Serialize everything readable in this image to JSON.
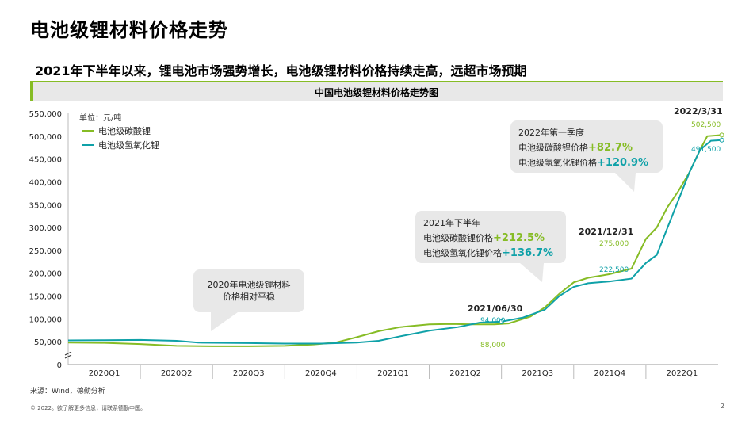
{
  "page": {
    "title": "电池级锂材料价格走势",
    "subtitle": "2021年下半年以来，锂电池市场强势增长，电池级锂材料价格持续走高，远超市场预期",
    "chart_heading": "中国电池级锂材料价格走势图",
    "source": "来源：Wind，德勤分析",
    "footer": "© 2022。欲了解更多信息，请联系德勤中国。",
    "page_number": "2"
  },
  "colors": {
    "green": "#86bc25",
    "teal": "#0fa1a8",
    "callout_bg": "#e8e8e8"
  },
  "callouts": {
    "c2020": {
      "text_line1": "2020年电池级锂材料",
      "text_line2": "价格相对平稳"
    },
    "c2021h2": {
      "line1": "2021年下半年",
      "carb_label": "电池级碳酸锂价格",
      "carb_pct": "+212.5%",
      "hydro_label": "电池级氢氧化锂价格",
      "hydro_pct": "+136.7%"
    },
    "c2022q1": {
      "line1": "2022年第一季度",
      "carb_label": "电池级碳酸锂价格",
      "carb_pct": "+82.7%",
      "hydro_label": "电池级氢氧化锂价格",
      "hydro_pct": "+120.9%"
    }
  },
  "annotations": {
    "d1": {
      "date": "2021/06/30",
      "teal_val": "94,000",
      "green_val": "88,000"
    },
    "d2": {
      "date": "2021/12/31",
      "green_val": "275,000",
      "teal_val": "222,500"
    },
    "d3": {
      "date": "2022/3/31",
      "green_val": "502,500",
      "teal_val": "491,500"
    }
  },
  "chart_data": {
    "type": "line",
    "unit_label": "单位：元/吨",
    "x_labels": [
      "2020Q1",
      "2020Q2",
      "2020Q3",
      "2020Q4",
      "2021Q1",
      "2021Q2",
      "2021Q3",
      "2021Q4",
      "2022Q1"
    ],
    "y_ticks": [
      "0",
      "50,000",
      "100,000",
      "150,000",
      "200,000",
      "250,000",
      "300,000",
      "350,000",
      "400,000",
      "450,000",
      "500,000",
      "550,000"
    ],
    "ylim": [
      0,
      550000
    ],
    "series": [
      {
        "name": "电池级碳酸锂",
        "color": "#86bc25",
        "points": [
          [
            0.0,
            48000
          ],
          [
            0.5,
            47500
          ],
          [
            1.0,
            45000
          ],
          [
            1.5,
            41000
          ],
          [
            2.0,
            40000
          ],
          [
            2.5,
            40000
          ],
          [
            3.0,
            41000
          ],
          [
            3.4,
            44000
          ],
          [
            3.7,
            48000
          ],
          [
            4.0,
            60000
          ],
          [
            4.3,
            73000
          ],
          [
            4.6,
            82000
          ],
          [
            5.0,
            88000
          ],
          [
            5.3,
            89000
          ],
          [
            5.6,
            88000
          ],
          [
            5.9,
            88000
          ],
          [
            6.1,
            90000
          ],
          [
            6.4,
            105000
          ],
          [
            6.6,
            125000
          ],
          [
            6.8,
            155000
          ],
          [
            7.0,
            180000
          ],
          [
            7.2,
            190000
          ],
          [
            7.5,
            198000
          ],
          [
            7.8,
            210000
          ],
          [
            8.0,
            275000
          ],
          [
            8.15,
            300000
          ],
          [
            8.3,
            345000
          ],
          [
            8.45,
            380000
          ],
          [
            8.6,
            420000
          ],
          [
            8.75,
            470000
          ],
          [
            8.85,
            500000
          ],
          [
            9.05,
            502500
          ]
        ]
      },
      {
        "name": "电池级氢氧化锂",
        "color": "#0fa1a8",
        "points": [
          [
            0.0,
            53000
          ],
          [
            0.5,
            53500
          ],
          [
            1.0,
            54000
          ],
          [
            1.5,
            52000
          ],
          [
            1.8,
            48000
          ],
          [
            2.5,
            47000
          ],
          [
            3.0,
            46000
          ],
          [
            3.5,
            46000
          ],
          [
            4.0,
            48000
          ],
          [
            4.3,
            52000
          ],
          [
            4.6,
            62000
          ],
          [
            5.0,
            74000
          ],
          [
            5.4,
            82000
          ],
          [
            5.7,
            92000
          ],
          [
            6.0,
            94000
          ],
          [
            6.3,
            103000
          ],
          [
            6.6,
            120000
          ],
          [
            6.8,
            150000
          ],
          [
            7.0,
            170000
          ],
          [
            7.2,
            178000
          ],
          [
            7.5,
            182000
          ],
          [
            7.8,
            188000
          ],
          [
            8.0,
            222500
          ],
          [
            8.15,
            240000
          ],
          [
            8.3,
            300000
          ],
          [
            8.45,
            360000
          ],
          [
            8.6,
            420000
          ],
          [
            8.75,
            470000
          ],
          [
            8.9,
            490000
          ],
          [
            9.05,
            491500
          ]
        ]
      }
    ]
  }
}
